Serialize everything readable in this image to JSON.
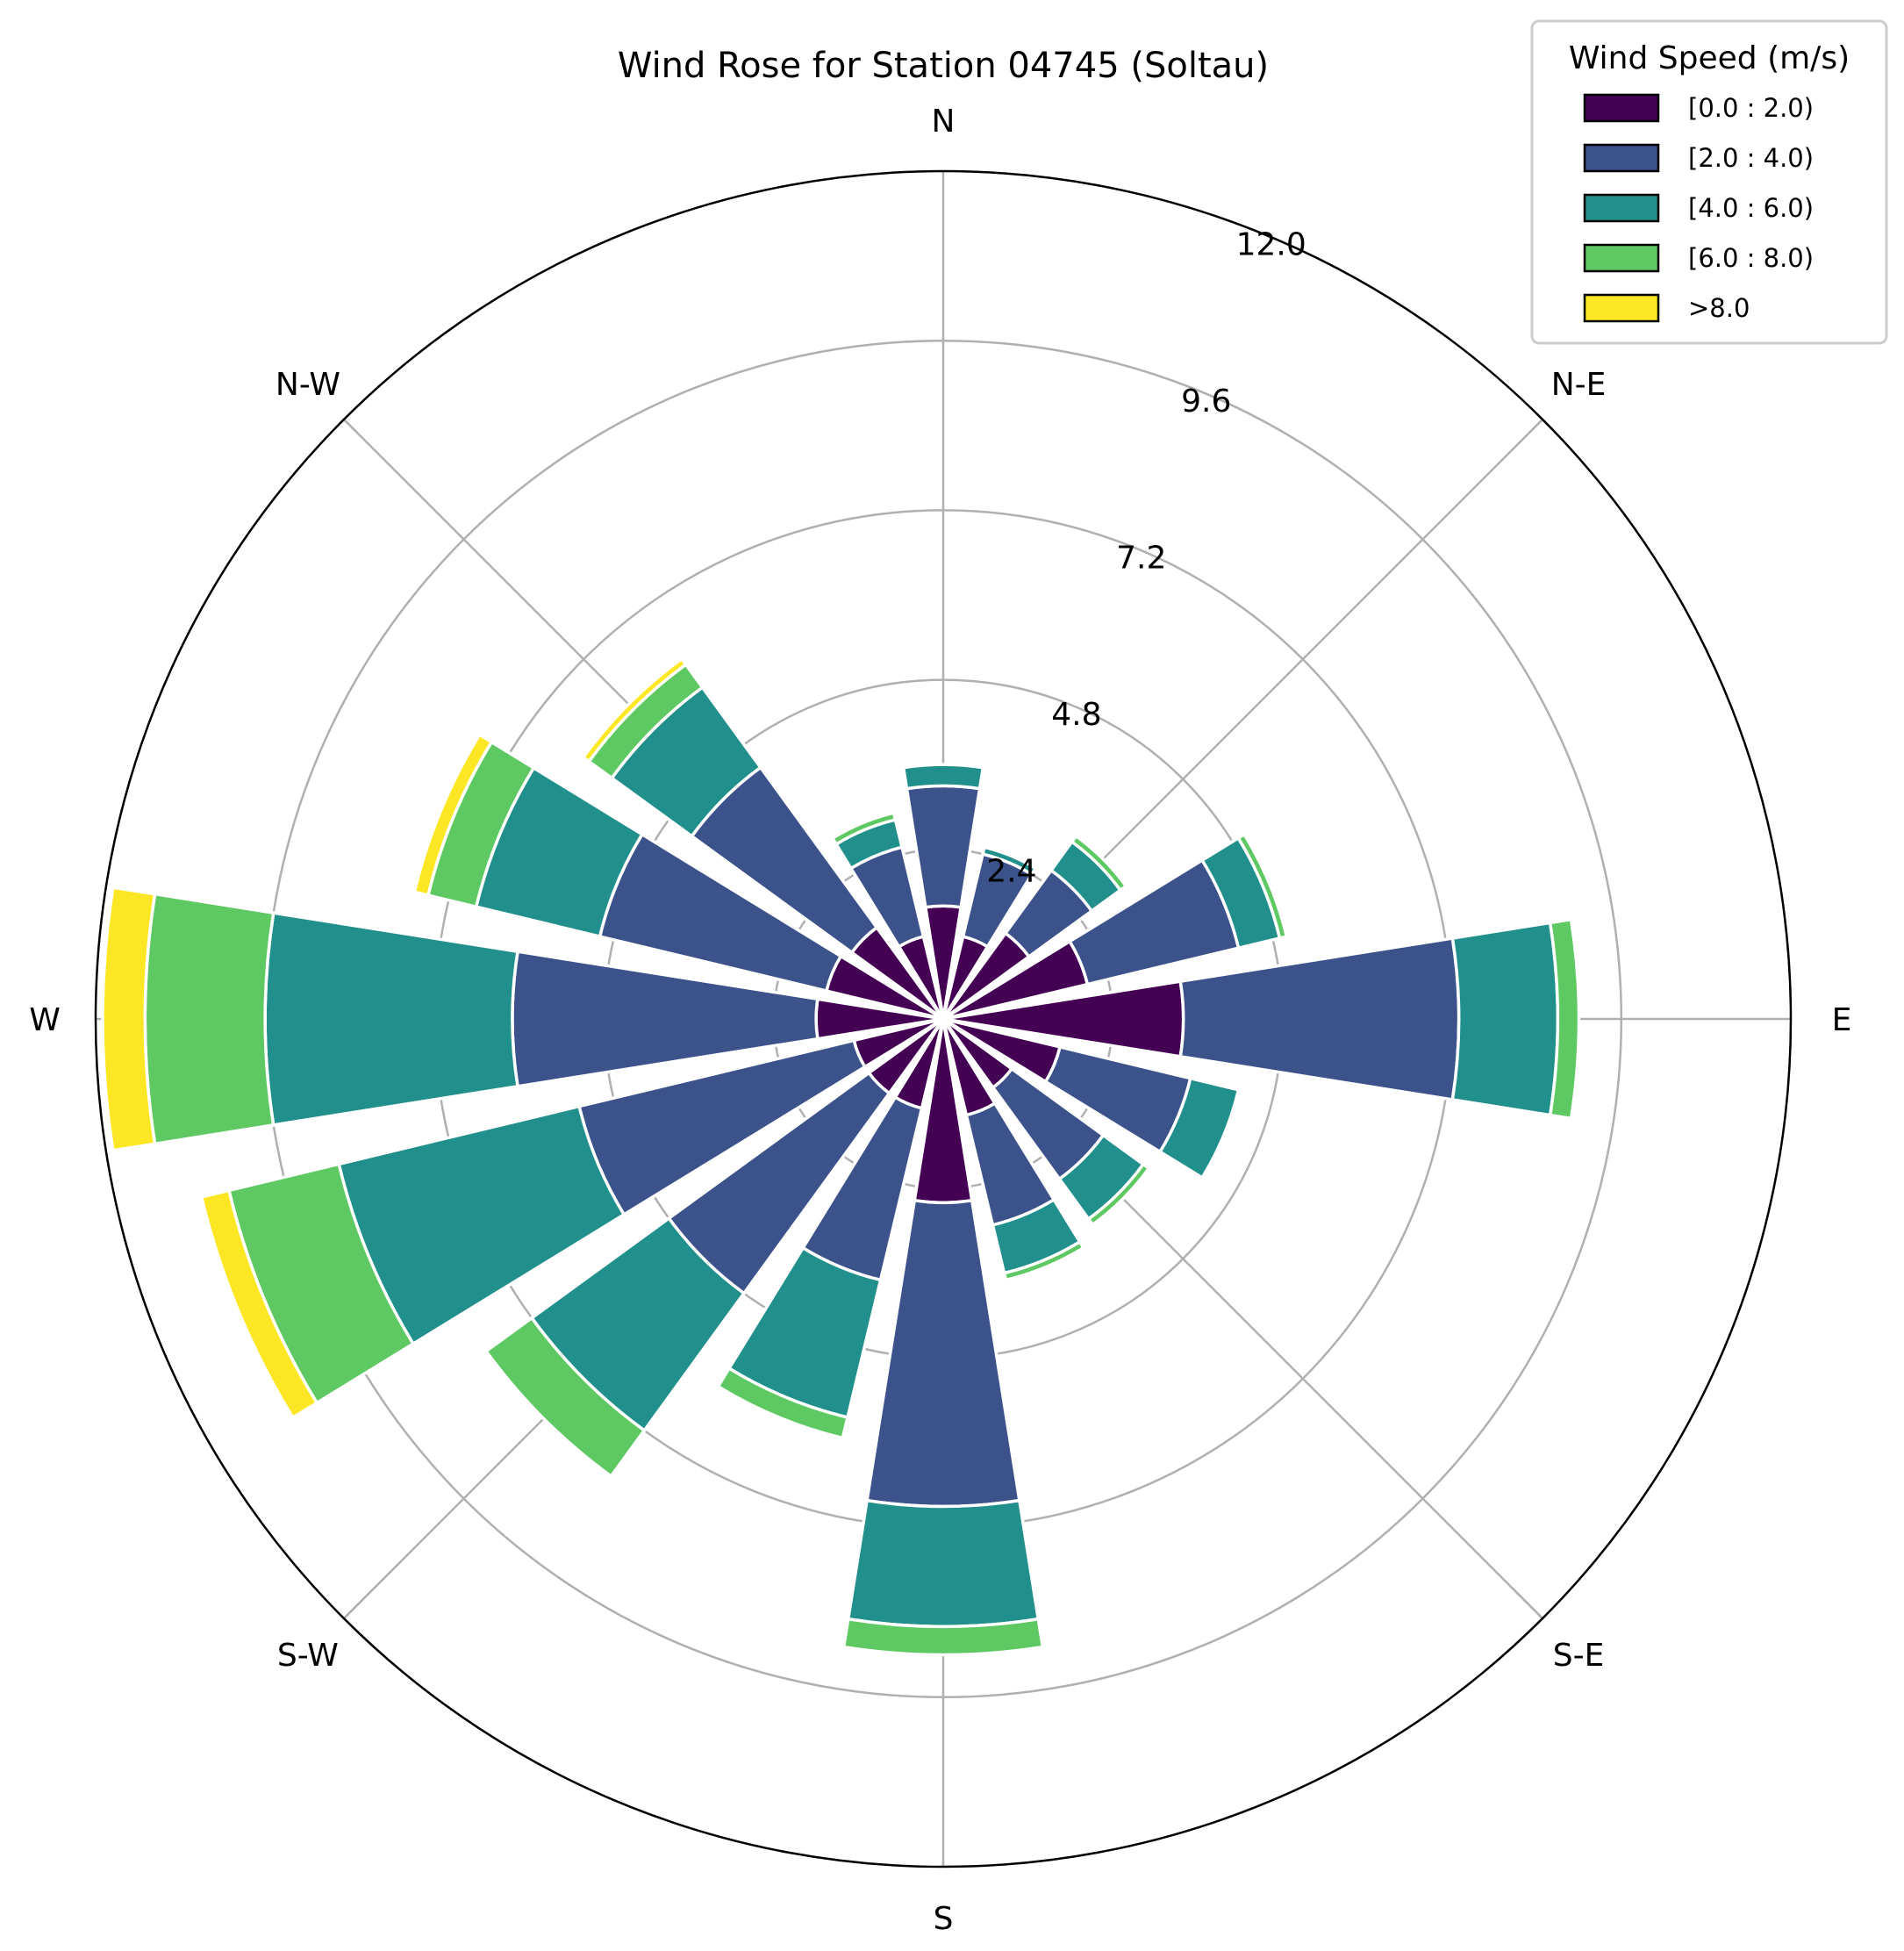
{
  "chart_data": {
    "type": "wind-rose",
    "title": "Wind Rose for Station 04745 (Soltau)",
    "directions": [
      "N",
      "NNE",
      "NE",
      "ENE",
      "E",
      "ESE",
      "SE",
      "SSE",
      "S",
      "SSW",
      "SW",
      "WSW",
      "W",
      "WNW",
      "NW",
      "NNW"
    ],
    "direction_labels": [
      "N",
      "N-E",
      "E",
      "S-E",
      "S",
      "S-W",
      "W",
      "N-W"
    ],
    "radial_ticks": [
      "2.4",
      "4.8",
      "7.2",
      "9.6",
      "12.0"
    ],
    "radial_tick_values": [
      2.4,
      4.8,
      7.2,
      9.6,
      12.0
    ],
    "rmax": 12.0,
    "legend": {
      "title": "Wind Speed (m/s)",
      "placement": "top-right"
    },
    "series": [
      {
        "name": "[0.0 : 2.0)",
        "color": "#440154",
        "values": [
          1.6,
          1.2,
          1.5,
          2.1,
          3.4,
          1.7,
          1.2,
          1.4,
          2.6,
          1.3,
          1.3,
          1.3,
          1.8,
          1.7,
          1.6,
          1.2
        ]
      },
      {
        "name": "[2.0 : 4.0)",
        "color": "#3b528b",
        "values": [
          1.7,
          1.2,
          1.1,
          2.2,
          3.9,
          1.9,
          1.6,
          1.6,
          4.3,
          2.5,
          3.5,
          4.0,
          4.3,
          3.3,
          2.8,
          1.3
        ]
      },
      {
        "name": "[4.0 : 6.0)",
        "color": "#21908d",
        "values": [
          0.3,
          0.1,
          0.5,
          0.6,
          1.4,
          0.7,
          0.7,
          0.7,
          1.7,
          2.0,
          2.4,
          3.5,
          3.5,
          1.8,
          1.4,
          0.4
        ]
      },
      {
        "name": "[6.0 : 8.0)",
        "color": "#5ec962",
        "values": [
          0.0,
          0.0,
          0.1,
          0.1,
          0.3,
          0.0,
          0.1,
          0.1,
          0.4,
          0.3,
          0.8,
          1.6,
          1.7,
          0.7,
          0.4,
          0.1
        ]
      },
      {
        "name": ">8.0",
        "color": "#fde725",
        "values": [
          0.0,
          0.0,
          0.0,
          0.0,
          0.0,
          0.0,
          0.0,
          0.0,
          0.0,
          0.0,
          0.0,
          0.4,
          0.6,
          0.2,
          0.1,
          0.0
        ]
      }
    ],
    "grid": true
  }
}
